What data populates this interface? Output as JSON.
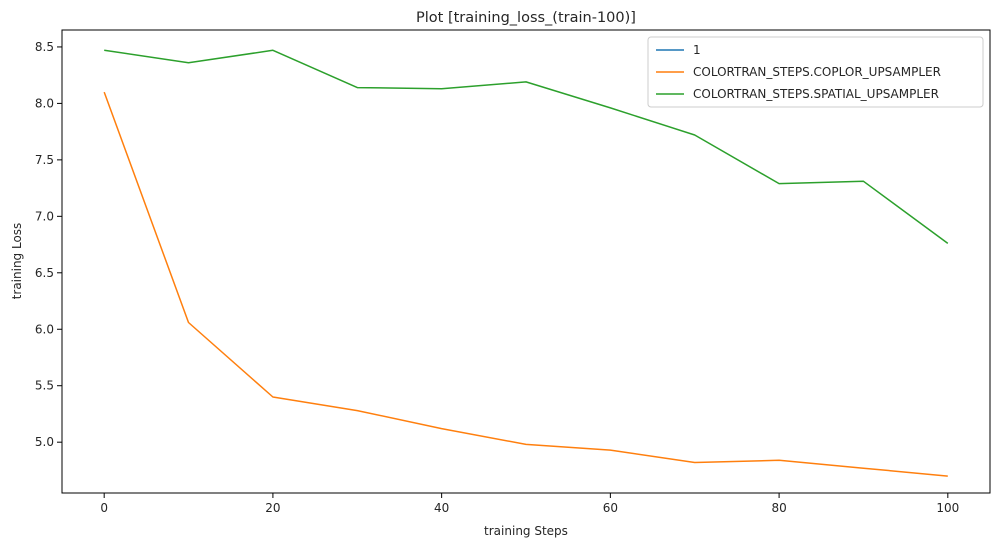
{
  "chart_data": {
    "type": "line",
    "title": "Plot [training_loss_(train-100)]",
    "xlabel": "training Steps",
    "ylabel": "training Loss",
    "xlim": [
      -5,
      105
    ],
    "ylim": [
      4.55,
      8.65
    ],
    "xticks": [
      0,
      20,
      40,
      60,
      80,
      100
    ],
    "yticks": [
      5.0,
      5.5,
      6.0,
      6.5,
      7.0,
      7.5,
      8.0,
      8.5
    ],
    "ytick_labels": [
      "5.0",
      "5.5",
      "6.0",
      "6.5",
      "7.0",
      "7.5",
      "8.0",
      "8.5"
    ],
    "grid": false,
    "legend_position": "top-right",
    "series": [
      {
        "name": "1",
        "color": "#1f77b4",
        "x": [],
        "y": []
      },
      {
        "name": "COLORTRAN_STEPS.COPLOR_UPSAMPLER",
        "color": "#ff7f0e",
        "x": [
          0,
          10,
          20,
          30,
          40,
          50,
          60,
          70,
          80,
          90,
          100
        ],
        "y": [
          8.1,
          6.06,
          5.4,
          5.28,
          5.12,
          4.98,
          4.93,
          4.82,
          4.84,
          4.77,
          4.7
        ]
      },
      {
        "name": "COLORTRAN_STEPS.SPATIAL_UPSAMPLER",
        "color": "#2ca02c",
        "x": [
          0,
          10,
          20,
          30,
          40,
          50,
          60,
          70,
          80,
          90,
          100
        ],
        "y": [
          8.47,
          8.36,
          8.47,
          8.14,
          8.13,
          8.19,
          7.96,
          7.72,
          7.29,
          7.31,
          6.76
        ]
      }
    ]
  }
}
